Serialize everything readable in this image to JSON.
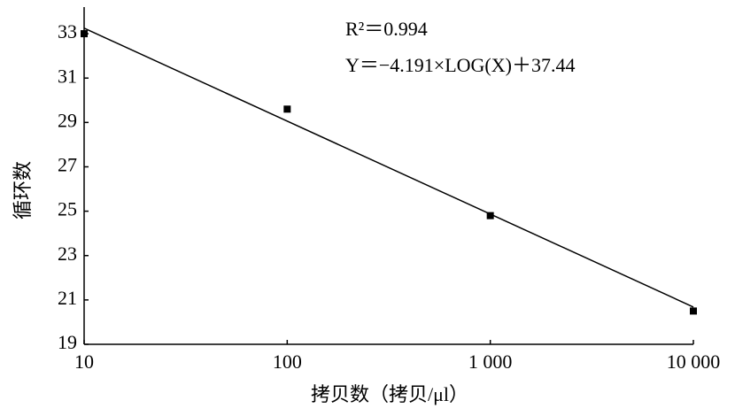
{
  "chart_data": {
    "type": "scatter",
    "x_label": "拷贝数（拷贝/μl）",
    "y_label": "循环数",
    "annotations": [
      "R²＝0.994",
      "Y＝−4.191×LOG(X)＋37.44"
    ],
    "x": [
      10,
      100,
      1000,
      10000
    ],
    "values": [
      33.0,
      29.6,
      24.8,
      20.5
    ],
    "color": "#000000",
    "fit": {
      "x": [
        10,
        10000
      ],
      "values": [
        33.25,
        20.68
      ]
    },
    "x_log": true,
    "xlim": [
      10,
      10000
    ],
    "ylim": [
      19,
      34.2
    ],
    "xticks": [
      10,
      100,
      {
        "value": 1000,
        "label": "1 000"
      },
      {
        "value": 10000,
        "label": "10 000"
      }
    ],
    "yticks": [
      19,
      21,
      23,
      25,
      27,
      29,
      31,
      33
    ]
  }
}
